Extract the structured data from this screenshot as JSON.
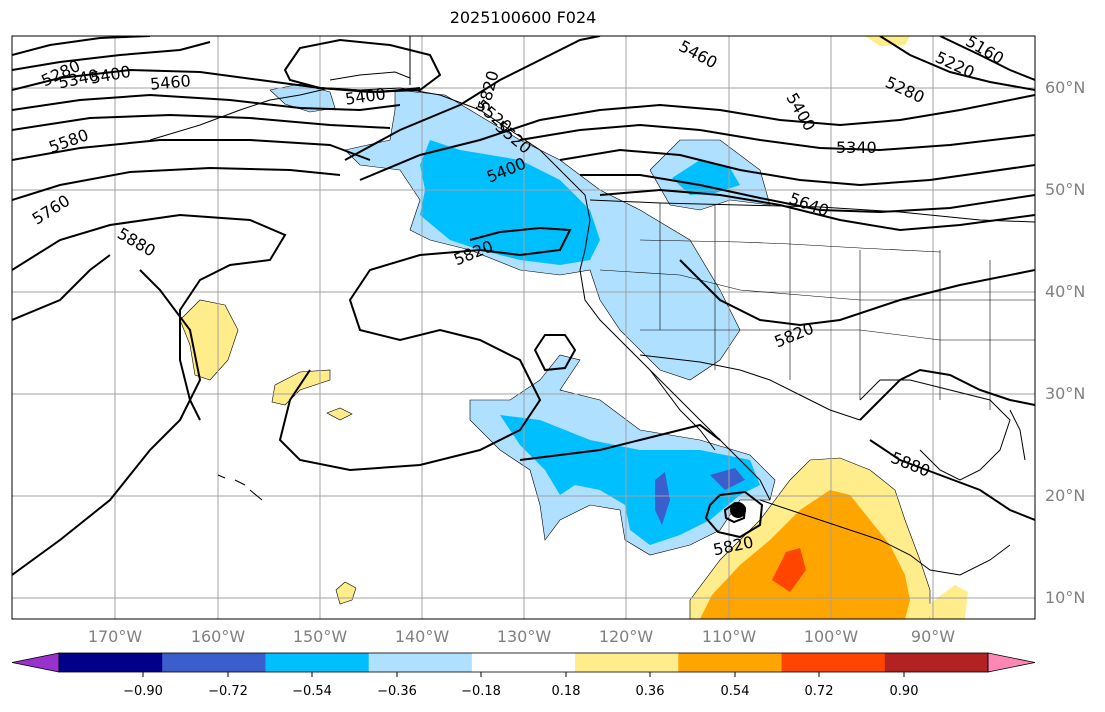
{
  "title": "2025100600 F024",
  "lon_labels": [
    "170°W",
    "160°W",
    "150°W",
    "140°W",
    "130°W",
    "120°W",
    "110°W",
    "100°W",
    "90°W"
  ],
  "lat_labels": [
    "60°N",
    "50°N",
    "40°N",
    "30°N",
    "20°N",
    "10°N"
  ],
  "colorbar": {
    "colors": [
      "#9932cc",
      "#00008b",
      "#3a5fcd",
      "#00bfff",
      "#b0e0ff",
      "#ffffff",
      "#ffec8b",
      "#ffa500",
      "#ff4500",
      "#b22222",
      "#ff87b4"
    ],
    "tick_labels": [
      "−0.90",
      "−0.72",
      "−0.54",
      "−0.36",
      "−0.18",
      "0.18",
      "0.36",
      "0.54",
      "0.72",
      "0.90"
    ]
  },
  "contour_labels": [
    "5280",
    "5340",
    "5400",
    "5460",
    "5400",
    "5580",
    "5760",
    "5880",
    "5460",
    "5400",
    "5160",
    "5220",
    "5280",
    "5340",
    "5640",
    "5820",
    "5820",
    "5820",
    "5880",
    "5820",
    "5520",
    "5400",
    "5520"
  ],
  "palette": {
    "shade_light_blue": "#b0e0ff",
    "shade_blue": "#00bfff",
    "shade_dark_blue": "#3a5fcd",
    "shade_yellow": "#ffec8b",
    "shade_orange": "#ffa500",
    "shade_red": "#ff4500"
  }
}
